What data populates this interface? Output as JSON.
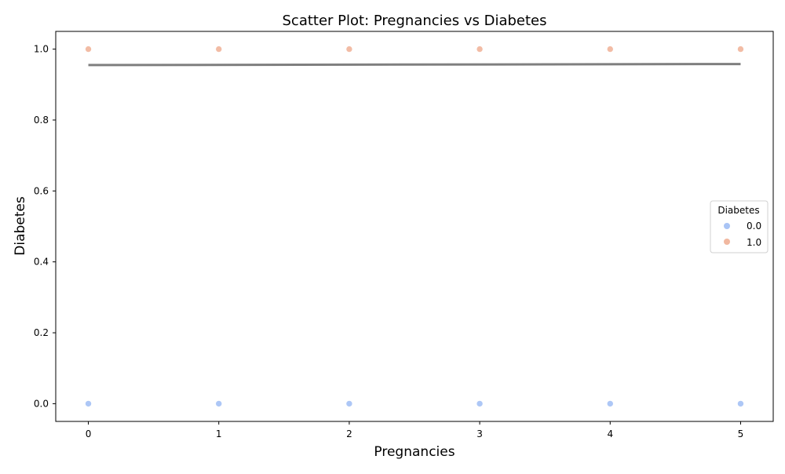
{
  "chart_data": {
    "type": "scatter",
    "title": "Scatter Plot: Pregnancies vs Diabetes",
    "xlabel": "Pregnancies",
    "ylabel": "Diabetes",
    "xlim": [
      -0.25,
      5.25
    ],
    "ylim": [
      -0.05,
      1.05
    ],
    "x_ticks": [
      0,
      1,
      2,
      3,
      4,
      5
    ],
    "x_tick_labels": [
      "0",
      "1",
      "2",
      "3",
      "4",
      "5"
    ],
    "y_ticks": [
      0.0,
      0.2,
      0.4,
      0.6,
      0.8,
      1.0
    ],
    "y_tick_labels": [
      "0.0",
      "0.2",
      "0.4",
      "0.6",
      "0.8",
      "1.0"
    ],
    "grid": false,
    "legend": {
      "title": "Diabetes",
      "placement": "center-right"
    },
    "series": [
      {
        "name": "0.0",
        "color": "#a9c4f5",
        "points": [
          {
            "x": 0,
            "y": 0.0
          },
          {
            "x": 1,
            "y": 0.0
          },
          {
            "x": 2,
            "y": 0.0
          },
          {
            "x": 3,
            "y": 0.0
          },
          {
            "x": 4,
            "y": 0.0
          },
          {
            "x": 5,
            "y": 0.0
          }
        ]
      },
      {
        "name": "1.0",
        "color": "#f1b8a0",
        "points": [
          {
            "x": 0,
            "y": 1.0
          },
          {
            "x": 1,
            "y": 1.0
          },
          {
            "x": 2,
            "y": 1.0
          },
          {
            "x": 3,
            "y": 1.0
          },
          {
            "x": 4,
            "y": 1.0
          },
          {
            "x": 5,
            "y": 1.0
          }
        ]
      }
    ],
    "trend_line": {
      "color": "#7f7f7f",
      "points": [
        {
          "x": 0,
          "y": 0.955
        },
        {
          "x": 5,
          "y": 0.958
        }
      ]
    }
  }
}
